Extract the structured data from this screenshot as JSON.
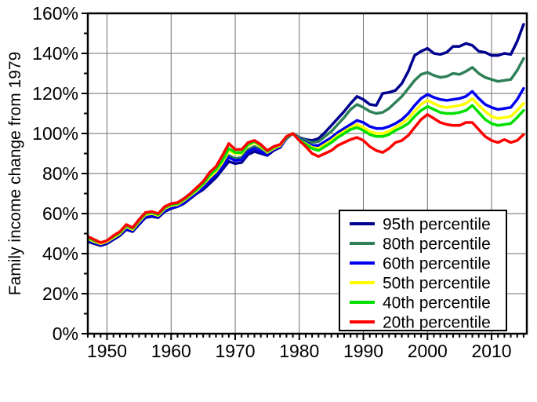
{
  "chart_data": {
    "type": "line",
    "title": "",
    "xlabel": "",
    "ylabel": "Family income change from 1979",
    "ylim": [
      0,
      160
    ],
    "xlim": [
      1947,
      2015.5
    ],
    "y_major_step": 20,
    "y_minor_step": 10,
    "y_tick_labels": [
      "0%",
      "20%",
      "40%",
      "60%",
      "80%",
      "100%",
      "120%",
      "140%",
      "160%"
    ],
    "x_major_ticks": [
      1950,
      1960,
      1970,
      1980,
      1990,
      2000,
      2010
    ],
    "x_minor_step": 1,
    "grid": true,
    "grid_color": "#6e6e6e",
    "frame_color": "#000000",
    "background": "#ffffff",
    "line_width": 3.5,
    "legend": {
      "position": "bottom-right",
      "border": "#000000",
      "background": "#ffffff"
    },
    "x": [
      1947,
      1948,
      1949,
      1950,
      1951,
      1952,
      1953,
      1954,
      1955,
      1956,
      1957,
      1958,
      1959,
      1960,
      1961,
      1962,
      1963,
      1964,
      1965,
      1966,
      1967,
      1968,
      1969,
      1970,
      1971,
      1972,
      1973,
      1974,
      1975,
      1976,
      1977,
      1978,
      1979,
      1980,
      1981,
      1982,
      1983,
      1984,
      1985,
      1986,
      1987,
      1988,
      1989,
      1990,
      1991,
      1992,
      1993,
      1994,
      1995,
      1996,
      1997,
      1998,
      1999,
      2000,
      2001,
      2002,
      2003,
      2004,
      2005,
      2006,
      2007,
      2008,
      2009,
      2010,
      2011,
      2012,
      2013,
      2014,
      2015
    ],
    "series": [
      {
        "name": "95th percentile",
        "color": "#00008f",
        "values": [
          46,
          45,
          44,
          45,
          47,
          49,
          52,
          51,
          54.5,
          58,
          58.5,
          58,
          61,
          62.5,
          63.5,
          65,
          67.5,
          70,
          72,
          75,
          78,
          82,
          86,
          85,
          85.5,
          89.5,
          91,
          90,
          89,
          91.5,
          93,
          97.5,
          100,
          98,
          97,
          96.5,
          97.5,
          100.5,
          104,
          107.5,
          111,
          115,
          118.5,
          117,
          114.5,
          114,
          120,
          120.5,
          121.5,
          125,
          131,
          139,
          141,
          142.5,
          140,
          139.5,
          140.5,
          143.5,
          143.5,
          145,
          144,
          141,
          140.5,
          139,
          139,
          140,
          139.5,
          146,
          154.5
        ]
      },
      {
        "name": "80th percentile",
        "color": "#2e8057",
        "values": [
          47,
          46,
          45,
          46,
          48,
          50,
          53,
          52,
          55.5,
          59,
          59.5,
          59,
          62,
          63.5,
          64,
          66,
          68.5,
          71,
          73.5,
          77,
          80,
          84,
          89,
          87.5,
          88,
          92,
          93.5,
          92,
          90.5,
          92.5,
          94,
          98,
          100,
          98,
          96.5,
          95.5,
          96,
          98.5,
          101,
          104.5,
          108,
          112,
          114.5,
          113,
          111,
          110,
          110.5,
          112.5,
          115.5,
          118.5,
          122.5,
          126.5,
          129.5,
          130.5,
          129,
          128,
          128.5,
          130,
          129.5,
          131,
          133,
          130,
          128,
          127,
          126,
          126.5,
          127,
          131.5,
          137.5
        ]
      },
      {
        "name": "60th percentile",
        "color": "#0000ee",
        "values": [
          46.5,
          45.5,
          44.5,
          45.5,
          47.5,
          49.5,
          52.5,
          51.5,
          55,
          58.5,
          59,
          58.5,
          61.5,
          63,
          63.5,
          65.5,
          68,
          70.5,
          73,
          76.5,
          79.5,
          83.5,
          88,
          86.5,
          87,
          91,
          92.5,
          91,
          89.5,
          92,
          93.5,
          97.5,
          100,
          97.5,
          95.5,
          94,
          94,
          96,
          98,
          100.5,
          102.5,
          104.5,
          106.5,
          105.5,
          103.5,
          102.5,
          102.5,
          103.5,
          105,
          107,
          110,
          114,
          117.5,
          119.5,
          118,
          117,
          116.5,
          117,
          117.5,
          118.5,
          121,
          117.5,
          114.5,
          113,
          112,
          112.5,
          113,
          117,
          122.5
        ]
      },
      {
        "name": "50th percentile",
        "color": "#ffff00",
        "values": [
          47.5,
          46,
          45,
          46,
          48,
          50,
          53.5,
          52,
          56,
          59.5,
          60,
          59,
          62.5,
          64,
          64.5,
          66.5,
          69,
          71.5,
          74.5,
          78,
          81,
          85.5,
          91.5,
          90,
          90,
          94,
          95.5,
          93.5,
          90.5,
          92.5,
          94,
          98,
          100,
          97,
          95,
          93,
          92.5,
          94.5,
          96.5,
          99,
          101,
          103,
          104.5,
          103,
          101,
          100,
          100,
          101,
          103,
          105,
          107.5,
          111,
          114.5,
          116.5,
          115,
          113.5,
          113,
          113.5,
          114,
          115,
          117.5,
          114,
          111,
          108.5,
          107.5,
          108,
          108.5,
          111.5,
          115
        ]
      },
      {
        "name": "40th percentile",
        "color": "#00e000",
        "values": [
          48,
          46.5,
          45.5,
          46.5,
          48.5,
          50.5,
          54,
          52.5,
          56.5,
          60,
          60.5,
          59.5,
          63,
          64.5,
          65,
          67,
          69.5,
          72,
          75,
          79,
          82,
          86.5,
          92.5,
          90.5,
          90.5,
          94.5,
          96,
          94,
          91,
          93,
          94.5,
          98,
          100,
          97,
          94.5,
          92.5,
          91.5,
          93.5,
          95.5,
          98,
          100,
          102,
          103,
          101.5,
          99.5,
          98.5,
          98.5,
          99.5,
          101.5,
          103,
          105,
          108.5,
          111.5,
          113.5,
          112,
          110.5,
          110,
          110,
          110.5,
          111.5,
          114,
          110.5,
          107,
          105,
          104,
          104.5,
          105,
          108,
          111.5
        ]
      },
      {
        "name": "20th percentile",
        "color": "#ff0000",
        "values": [
          48.5,
          47,
          45.5,
          46.5,
          49,
          51,
          54.5,
          53,
          57,
          60.5,
          61,
          60,
          63.5,
          65,
          65.5,
          67.5,
          70,
          73,
          76,
          80.5,
          83.5,
          89,
          95,
          92,
          92,
          95.5,
          96.5,
          94.5,
          91.5,
          93.5,
          94.5,
          98.5,
          100,
          96.5,
          93.5,
          90,
          88.5,
          90,
          91.5,
          94,
          95.5,
          97,
          98,
          96.5,
          93.5,
          91.5,
          90.5,
          92.5,
          95.5,
          96.5,
          99,
          103,
          107,
          109.5,
          107.5,
          105.5,
          104.5,
          104,
          104,
          105.5,
          105.5,
          102,
          98.5,
          96.5,
          95.5,
          97,
          95.5,
          96.5,
          99.5
        ]
      }
    ]
  }
}
